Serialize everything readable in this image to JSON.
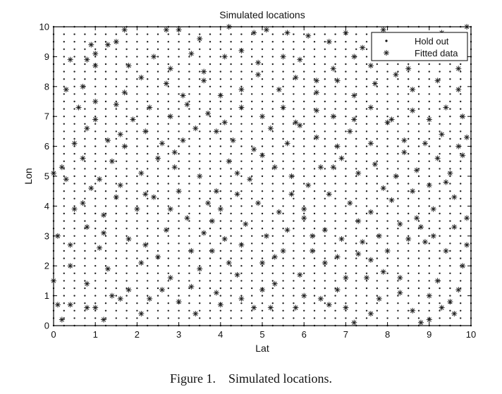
{
  "caption": {
    "label": "Figure 1.",
    "text": "Simulated locations."
  },
  "chart_data": {
    "type": "scatter",
    "title": "Simulated locations",
    "xlabel": "Lat",
    "ylabel": "Lon",
    "xlim": [
      0,
      10
    ],
    "ylim": [
      0,
      10
    ],
    "xticks": [
      "0",
      "1",
      "2",
      "3",
      "4",
      "5",
      "6",
      "7",
      "8",
      "9",
      "10"
    ],
    "yticks": [
      "0",
      "1",
      "2",
      "3",
      "4",
      "5",
      "6",
      "7",
      "8",
      "9",
      "10"
    ],
    "grid": false,
    "legend_position": "top-right",
    "colors": {
      "axes": "#000000",
      "markers": "#222222"
    },
    "holdout_grid": {
      "start": 0,
      "end": 10,
      "step": 0.25
    },
    "series": [
      {
        "name": "Hold out",
        "marker": "dot",
        "values": "regular grid every 0.25 units on both axes (0 to 10)"
      },
      {
        "name": "Fitted data",
        "marker": "asterisk",
        "points": [
          [
            0.2,
            0.2
          ],
          [
            0.4,
            0.7
          ],
          [
            0.8,
            0.6
          ],
          [
            1.0,
            0.6
          ],
          [
            1.2,
            0.2
          ],
          [
            0.1,
            0.7
          ],
          [
            1.6,
            0.9
          ],
          [
            2.3,
            0.9
          ],
          [
            2.6,
            1.2
          ],
          [
            3.3,
            1.3
          ],
          [
            3.4,
            0.4
          ],
          [
            4.0,
            0.7
          ],
          [
            4.5,
            0.9
          ],
          [
            4.8,
            0.6
          ],
          [
            5.2,
            0.6
          ],
          [
            5.8,
            0.6
          ],
          [
            6.4,
            0.9
          ],
          [
            6.6,
            0.7
          ],
          [
            7.0,
            0.6
          ],
          [
            7.2,
            0.1
          ],
          [
            7.6,
            0.4
          ],
          [
            7.8,
            0.9
          ],
          [
            8.3,
            1.1
          ],
          [
            8.8,
            0.1
          ],
          [
            9.0,
            0.2
          ],
          [
            9.3,
            0.6
          ],
          [
            9.6,
            0.4
          ],
          [
            9.0,
            1.0
          ],
          [
            9.5,
            0.8
          ],
          [
            0.0,
            1.5
          ],
          [
            0.4,
            2.0
          ],
          [
            0.8,
            1.4
          ],
          [
            1.3,
            1.9
          ],
          [
            1.8,
            1.2
          ],
          [
            2.1,
            2.1
          ],
          [
            2.8,
            1.6
          ],
          [
            3.3,
            2.5
          ],
          [
            3.8,
            2.5
          ],
          [
            4.2,
            2.1
          ],
          [
            4.5,
            2.7
          ],
          [
            5.0,
            2.1
          ],
          [
            5.5,
            2.5
          ],
          [
            5.9,
            1.7
          ],
          [
            6.5,
            2.1
          ],
          [
            7.0,
            1.6
          ],
          [
            7.3,
            2.4
          ],
          [
            7.6,
            2.2
          ],
          [
            8.0,
            2.5
          ],
          [
            8.5,
            2.9
          ],
          [
            8.9,
            2.8
          ],
          [
            9.4,
            2.5
          ],
          [
            9.8,
            2.0
          ],
          [
            0.1,
            3.0
          ],
          [
            0.4,
            2.7
          ],
          [
            0.8,
            3.3
          ],
          [
            1.2,
            3.1
          ],
          [
            1.8,
            2.9
          ],
          [
            2.2,
            2.7
          ],
          [
            2.7,
            3.2
          ],
          [
            3.2,
            3.6
          ],
          [
            3.6,
            3.1
          ],
          [
            4.1,
            2.9
          ],
          [
            4.6,
            3.4
          ],
          [
            5.1,
            3.0
          ],
          [
            5.6,
            3.2
          ],
          [
            6.0,
            3.6
          ],
          [
            6.5,
            3.2
          ],
          [
            6.9,
            2.9
          ],
          [
            7.3,
            3.5
          ],
          [
            7.8,
            3.0
          ],
          [
            8.3,
            3.4
          ],
          [
            8.7,
            3.6
          ],
          [
            9.1,
            3.0
          ],
          [
            9.6,
            3.3
          ],
          [
            9.9,
            3.6
          ],
          [
            0.5,
            3.9
          ],
          [
            0.7,
            4.1
          ],
          [
            1.2,
            3.7
          ],
          [
            1.5,
            4.3
          ],
          [
            2.0,
            3.9
          ],
          [
            2.4,
            4.3
          ],
          [
            3.0,
            4.5
          ],
          [
            3.7,
            4.1
          ],
          [
            4.0,
            3.9
          ],
          [
            4.4,
            4.4
          ],
          [
            4.9,
            4.1
          ],
          [
            5.4,
            3.8
          ],
          [
            6.0,
            3.9
          ],
          [
            6.6,
            4.4
          ],
          [
            7.1,
            4.1
          ],
          [
            7.6,
            3.8
          ],
          [
            8.1,
            4.2
          ],
          [
            8.6,
            4.5
          ],
          [
            9.1,
            3.9
          ],
          [
            9.6,
            4.3
          ],
          [
            0.0,
            5.1
          ],
          [
            0.3,
            4.9
          ],
          [
            0.7,
            5.6
          ],
          [
            1.1,
            4.9
          ],
          [
            1.6,
            4.7
          ],
          [
            2.1,
            5.1
          ],
          [
            2.5,
            5.6
          ],
          [
            2.9,
            5.3
          ],
          [
            3.5,
            5.0
          ],
          [
            3.9,
            4.5
          ],
          [
            4.4,
            5.1
          ],
          [
            4.7,
            4.9
          ],
          [
            5.0,
            5.7
          ],
          [
            5.3,
            5.3
          ],
          [
            5.7,
            5.0
          ],
          [
            6.1,
            4.7
          ],
          [
            6.4,
            5.3
          ],
          [
            6.9,
            5.6
          ],
          [
            7.3,
            5.1
          ],
          [
            7.7,
            5.4
          ],
          [
            8.2,
            5.0
          ],
          [
            8.7,
            5.2
          ],
          [
            9.0,
            4.7
          ],
          [
            9.5,
            5.1
          ],
          [
            9.8,
            5.7
          ],
          [
            0.5,
            6.1
          ],
          [
            0.8,
            6.6
          ],
          [
            1.3,
            6.2
          ],
          [
            1.7,
            6.0
          ],
          [
            2.2,
            6.5
          ],
          [
            2.6,
            6.1
          ],
          [
            3.1,
            6.2
          ],
          [
            3.4,
            6.6
          ],
          [
            3.9,
            6.5
          ],
          [
            4.3,
            6.2
          ],
          [
            4.8,
            5.9
          ],
          [
            5.2,
            6.6
          ],
          [
            5.6,
            6.1
          ],
          [
            5.9,
            6.7
          ],
          [
            6.3,
            6.3
          ],
          [
            6.8,
            6.0
          ],
          [
            7.1,
            6.5
          ],
          [
            7.6,
            6.1
          ],
          [
            8.0,
            6.8
          ],
          [
            8.4,
            6.2
          ],
          [
            8.9,
            6.1
          ],
          [
            9.3,
            6.4
          ],
          [
            9.7,
            6.0
          ],
          [
            9.9,
            6.3
          ],
          [
            0.6,
            7.3
          ],
          [
            1.0,
            6.9
          ],
          [
            1.5,
            7.4
          ],
          [
            1.9,
            6.9
          ],
          [
            2.3,
            7.3
          ],
          [
            2.8,
            7.0
          ],
          [
            3.2,
            7.4
          ],
          [
            3.7,
            7.1
          ],
          [
            4.1,
            6.8
          ],
          [
            4.5,
            7.3
          ],
          [
            5.0,
            7.0
          ],
          [
            5.5,
            7.3
          ],
          [
            5.8,
            6.8
          ],
          [
            6.3,
            7.2
          ],
          [
            6.7,
            7.0
          ],
          [
            7.2,
            6.9
          ],
          [
            7.6,
            7.3
          ],
          [
            8.1,
            6.9
          ],
          [
            8.6,
            7.2
          ],
          [
            9.0,
            6.9
          ],
          [
            9.4,
            7.3
          ],
          [
            9.8,
            7.0
          ],
          [
            0.3,
            7.9
          ],
          [
            0.7,
            8.0
          ],
          [
            1.0,
            7.5
          ],
          [
            1.7,
            7.8
          ],
          [
            2.1,
            8.3
          ],
          [
            2.7,
            8.1
          ],
          [
            3.1,
            7.7
          ],
          [
            3.6,
            8.2
          ],
          [
            4.0,
            7.7
          ],
          [
            4.5,
            7.9
          ],
          [
            4.9,
            8.4
          ],
          [
            5.4,
            7.9
          ],
          [
            5.8,
            8.3
          ],
          [
            6.3,
            7.8
          ],
          [
            6.8,
            8.2
          ],
          [
            7.2,
            7.7
          ],
          [
            7.7,
            8.1
          ],
          [
            8.2,
            8.4
          ],
          [
            8.6,
            7.9
          ],
          [
            9.2,
            8.2
          ],
          [
            9.7,
            7.9
          ],
          [
            0.4,
            8.9
          ],
          [
            0.8,
            8.9
          ],
          [
            1.0,
            8.7
          ],
          [
            1.3,
            9.4
          ],
          [
            1.8,
            8.7
          ],
          [
            2.4,
            9.0
          ],
          [
            2.8,
            8.6
          ],
          [
            3.3,
            9.1
          ],
          [
            3.6,
            8.5
          ],
          [
            4.1,
            9.0
          ],
          [
            4.5,
            9.2
          ],
          [
            4.9,
            8.8
          ],
          [
            5.5,
            9.0
          ],
          [
            5.9,
            8.9
          ],
          [
            6.3,
            8.2
          ],
          [
            6.7,
            8.6
          ],
          [
            7.2,
            9.0
          ],
          [
            7.6,
            8.7
          ],
          [
            8.0,
            9.1
          ],
          [
            8.5,
            8.6
          ],
          [
            8.9,
            9.0
          ],
          [
            9.3,
            9.2
          ],
          [
            9.7,
            8.6
          ],
          [
            0.9,
            9.4
          ],
          [
            1.5,
            9.5
          ],
          [
            1.7,
            9.9
          ],
          [
            2.7,
            9.9
          ],
          [
            3.0,
            9.9
          ],
          [
            3.5,
            9.6
          ],
          [
            4.2,
            10.0
          ],
          [
            4.8,
            9.8
          ],
          [
            5.1,
            9.9
          ],
          [
            5.6,
            9.8
          ],
          [
            6.1,
            9.7
          ],
          [
            6.6,
            9.5
          ],
          [
            7.0,
            9.8
          ],
          [
            7.4,
            9.3
          ],
          [
            7.9,
            9.9
          ],
          [
            8.4,
            9.5
          ],
          [
            8.8,
            9.7
          ],
          [
            9.3,
            9.8
          ],
          [
            9.9,
            10.0
          ],
          [
            1.0,
            9.1
          ],
          [
            1.6,
            6.4
          ],
          [
            2.2,
            4.4
          ],
          [
            3.5,
            1.9
          ],
          [
            4.4,
            1.7
          ],
          [
            5.3,
            1.4
          ],
          [
            6.2,
            2.5
          ],
          [
            6.8,
            2.3
          ],
          [
            7.9,
            1.8
          ],
          [
            8.3,
            1.6
          ],
          [
            9.2,
            1.5
          ],
          [
            1.4,
            1.0
          ],
          [
            2.1,
            0.4
          ],
          [
            3.0,
            0.8
          ],
          [
            3.9,
            1.1
          ],
          [
            5.0,
            1.2
          ],
          [
            6.0,
            1.0
          ],
          [
            6.8,
            1.2
          ],
          [
            7.5,
            1.6
          ],
          [
            8.6,
            0.5
          ],
          [
            9.7,
            1.2
          ],
          [
            0.2,
            5.3
          ],
          [
            1.4,
            5.5
          ],
          [
            2.9,
            5.8
          ],
          [
            4.2,
            5.5
          ],
          [
            6.7,
            5.3
          ],
          [
            8.4,
            5.8
          ],
          [
            9.2,
            5.6
          ],
          [
            0.9,
            4.6
          ],
          [
            2.8,
            3.9
          ],
          [
            5.7,
            4.4
          ],
          [
            7.9,
            4.6
          ],
          [
            9.4,
            4.8
          ],
          [
            1.1,
            2.6
          ],
          [
            2.5,
            2.3
          ],
          [
            3.8,
            3.5
          ],
          [
            5.3,
            2.3
          ],
          [
            6.2,
            3.0
          ],
          [
            7.4,
            2.8
          ],
          [
            8.8,
            3.3
          ],
          [
            9.9,
            2.7
          ]
        ]
      }
    ]
  }
}
